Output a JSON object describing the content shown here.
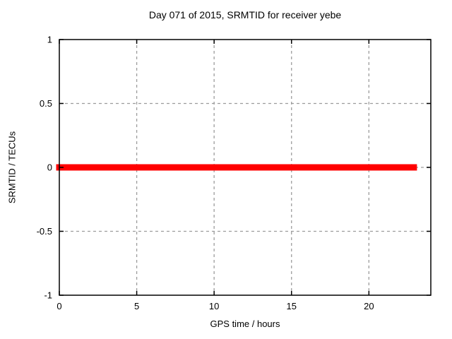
{
  "chart_data": {
    "type": "line",
    "title": "Day 071 of 2015, SRMTID for receiver yebe",
    "xlabel": "GPS time / hours",
    "ylabel": "SRMTID / TECUs",
    "xlim": [
      0,
      24
    ],
    "ylim": [
      -1,
      1
    ],
    "xticks": [
      0,
      5,
      10,
      15,
      20
    ],
    "yticks": [
      -1,
      -0.5,
      0,
      0.5,
      1
    ],
    "grid": true,
    "legend": "none",
    "series": [
      {
        "name": "SRMTID",
        "color": "#ff0000",
        "linewidth": 9,
        "x": [
          0,
          22.9
        ],
        "y": [
          0,
          0
        ]
      }
    ],
    "colors": {
      "background": "#ffffff",
      "axis": "#000000",
      "grid": "#9c9c9c",
      "text": "#000000"
    }
  }
}
